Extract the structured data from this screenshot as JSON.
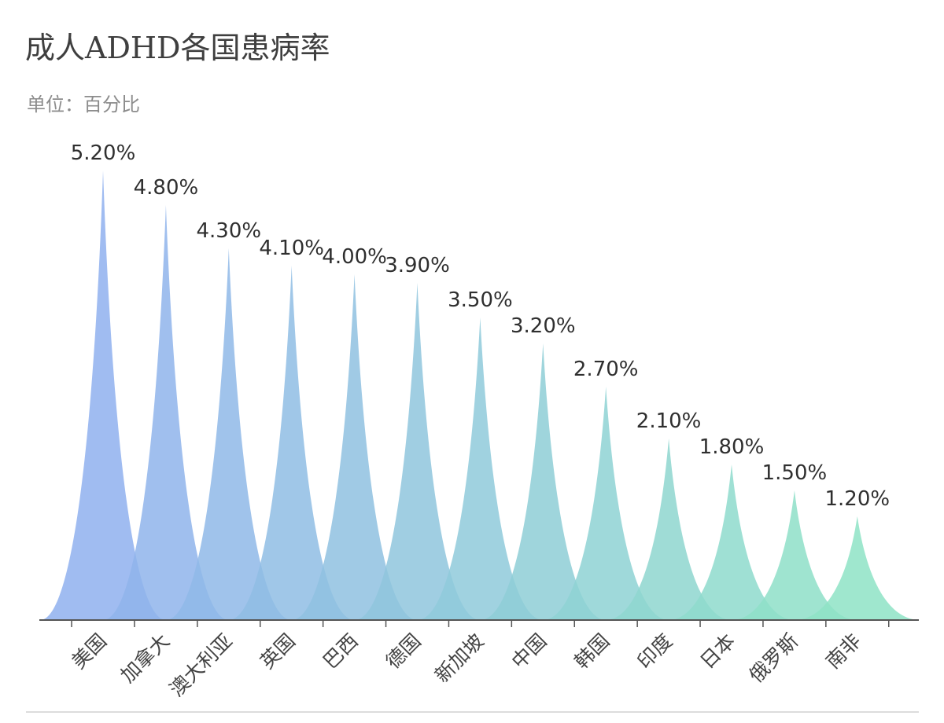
{
  "header": {
    "title": "成人ADHD各国患病率",
    "subtitle": "单位：百分比"
  },
  "chart_data": {
    "type": "area",
    "categories": [
      "美国",
      "加拿大",
      "澳大利亚",
      "英国",
      "巴西",
      "德国",
      "新加坡",
      "中国",
      "韩国",
      "印度",
      "日本",
      "俄罗斯",
      "南非"
    ],
    "values": [
      5.2,
      4.8,
      4.3,
      4.1,
      4.0,
      3.9,
      3.5,
      3.2,
      2.7,
      2.1,
      1.8,
      1.5,
      1.2
    ],
    "value_labels": [
      "5.20%",
      "4.80%",
      "4.30%",
      "4.10%",
      "4.00%",
      "3.90%",
      "3.50%",
      "3.20%",
      "2.70%",
      "2.10%",
      "1.80%",
      "1.50%",
      "1.20%"
    ],
    "ylim": [
      0,
      5.2
    ],
    "grid": false,
    "legend": "none",
    "colors": {
      "start": "#8fb0ee",
      "end": "#8ee3c5",
      "axis": "#555555",
      "label": "#2f2f2f"
    }
  }
}
